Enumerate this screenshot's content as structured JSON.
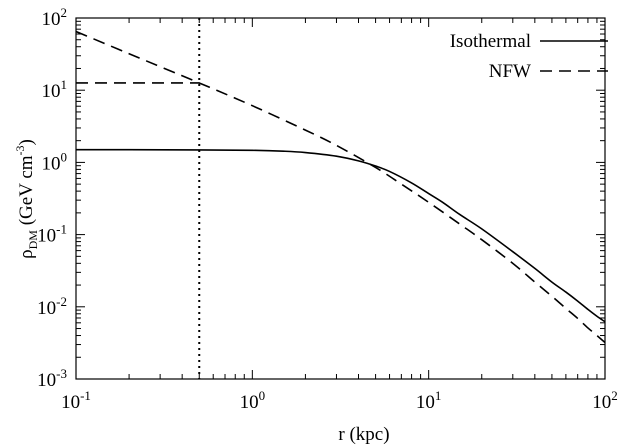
{
  "chart_data": {
    "type": "line",
    "x_scale": "log",
    "y_scale": "log",
    "xlim": [
      0.1,
      100
    ],
    "ylim": [
      0.001,
      100
    ],
    "xlabel": "r (kpc)",
    "ylabel": {
      "main": "ρ",
      "sub": "DM",
      "unit": " (GeV cm",
      "exp": "-3",
      "close": ")"
    },
    "x_ticks": [
      {
        "value": 0.1,
        "base": "10",
        "exp": "-1"
      },
      {
        "value": 1,
        "base": "10",
        "exp": "0"
      },
      {
        "value": 10,
        "base": "10",
        "exp": "1"
      },
      {
        "value": 100,
        "base": "10",
        "exp": "2"
      }
    ],
    "y_ticks": [
      {
        "value": 0.001,
        "base": "10",
        "exp": "-3"
      },
      {
        "value": 0.01,
        "base": "10",
        "exp": "-2"
      },
      {
        "value": 0.1,
        "base": "10",
        "exp": "-1"
      },
      {
        "value": 1,
        "base": "10",
        "exp": "0"
      },
      {
        "value": 10,
        "base": "10",
        "exp": "1"
      },
      {
        "value": 100,
        "base": "10",
        "exp": "2"
      }
    ],
    "legend_position": "top-right",
    "series": [
      {
        "name": "Isothermal",
        "dash": "solid",
        "color": "#000000",
        "points": [
          [
            0.1,
            1.5
          ],
          [
            0.2,
            1.5
          ],
          [
            0.5,
            1.49
          ],
          [
            1,
            1.47
          ],
          [
            1.5,
            1.43
          ],
          [
            2,
            1.37
          ],
          [
            3,
            1.22
          ],
          [
            4,
            1.05
          ],
          [
            5,
            0.89
          ],
          [
            6,
            0.75
          ],
          [
            8,
            0.52
          ],
          [
            10,
            0.37
          ],
          [
            12,
            0.28
          ],
          [
            15,
            0.19
          ],
          [
            20,
            0.12
          ],
          [
            30,
            0.058
          ],
          [
            40,
            0.034
          ],
          [
            50,
            0.022
          ],
          [
            60,
            0.016
          ],
          [
            70,
            0.012
          ],
          [
            80,
            0.0092
          ],
          [
            90,
            0.0074
          ],
          [
            100,
            0.0062
          ]
        ]
      },
      {
        "name": "NFW",
        "dash": "dashed",
        "color": "#000000",
        "points": [
          [
            0.1,
            65
          ],
          [
            0.2,
            32
          ],
          [
            0.5,
            12.6
          ],
          [
            1,
            6.1
          ],
          [
            2,
            2.8
          ],
          [
            3,
            1.72
          ],
          [
            5,
            0.85
          ],
          [
            7,
            0.5
          ],
          [
            10,
            0.28
          ],
          [
            15,
            0.14
          ],
          [
            20,
            0.085
          ],
          [
            30,
            0.04
          ],
          [
            40,
            0.022
          ],
          [
            50,
            0.014
          ],
          [
            60,
            0.0095
          ],
          [
            70,
            0.0069
          ],
          [
            80,
            0.0051
          ],
          [
            90,
            0.004
          ],
          [
            100,
            0.0032
          ]
        ]
      },
      {
        "name": "",
        "dash": "dashed",
        "color": "#000000",
        "points": [
          [
            0.1,
            12.6
          ],
          [
            0.5,
            12.6
          ]
        ]
      }
    ],
    "vlines": [
      {
        "x": 0.5,
        "style": "dotted",
        "color": "#000000"
      }
    ]
  }
}
